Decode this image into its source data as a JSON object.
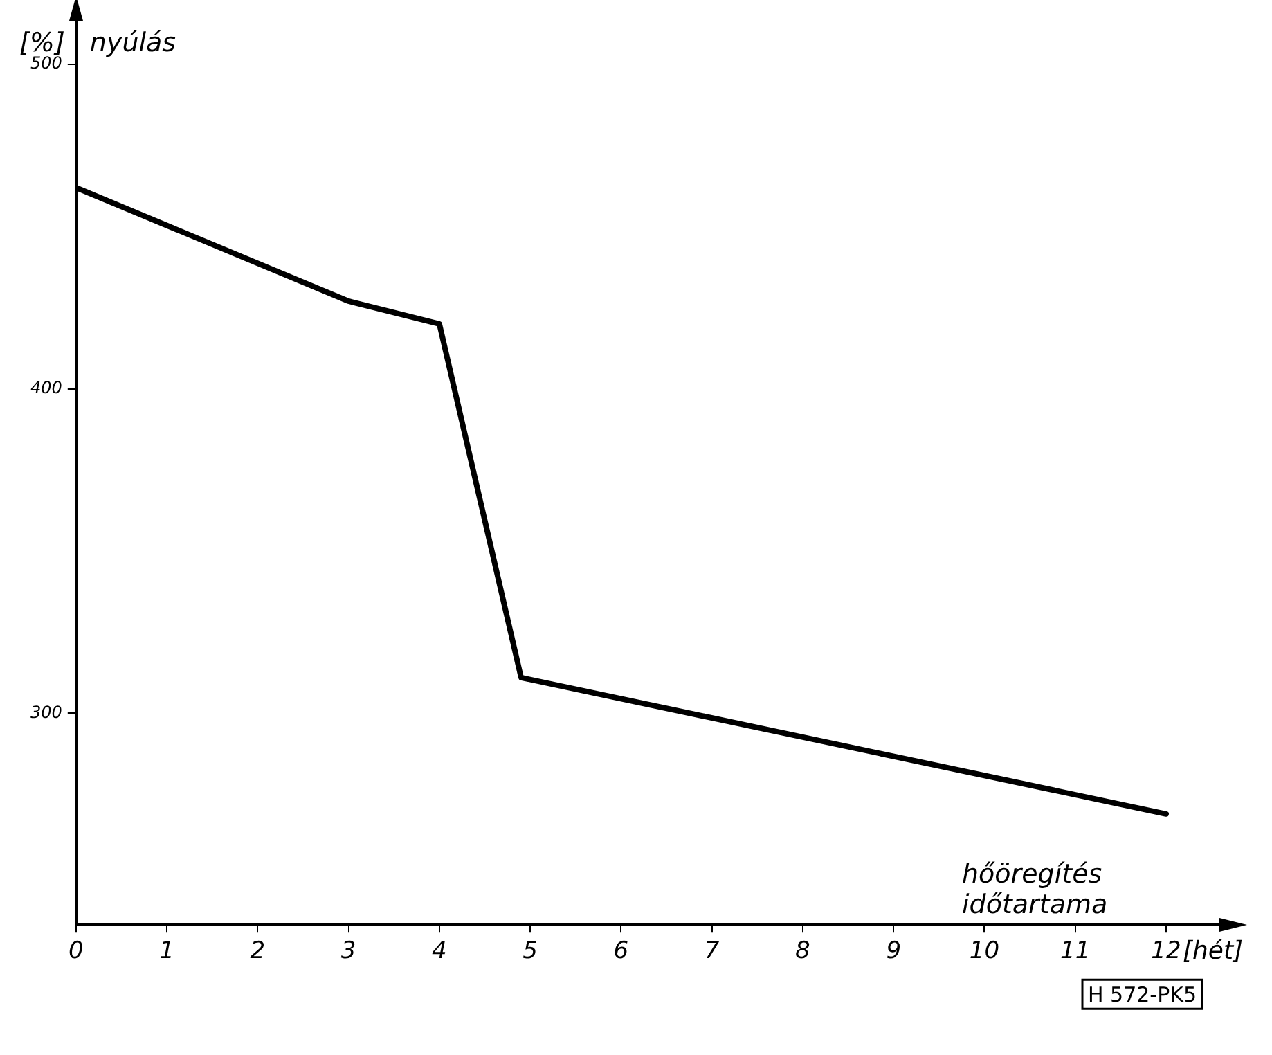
{
  "chart_data": {
    "type": "line",
    "ylabel": "nyúlás",
    "xlabel": "hőöregítés időtartama",
    "x": [
      0,
      3,
      4,
      4.9,
      12
    ],
    "series": [
      {
        "color": "#000000",
        "values": [
          462,
          427,
          420,
          311,
          269
        ]
      }
    ],
    "xlim": [
      0,
      12.8
    ],
    "xticks": [
      0,
      1,
      2,
      3,
      4,
      5,
      6,
      7,
      8,
      9,
      10,
      11,
      12
    ],
    "ylim": [
      235,
      515
    ],
    "yticks": [
      300,
      400,
      500
    ],
    "grid": false,
    "legend": false,
    "marker": "none",
    "line_style": "solid",
    "annotations": [
      "[%]",
      "[hét]",
      "H 572-PK5"
    ]
  }
}
